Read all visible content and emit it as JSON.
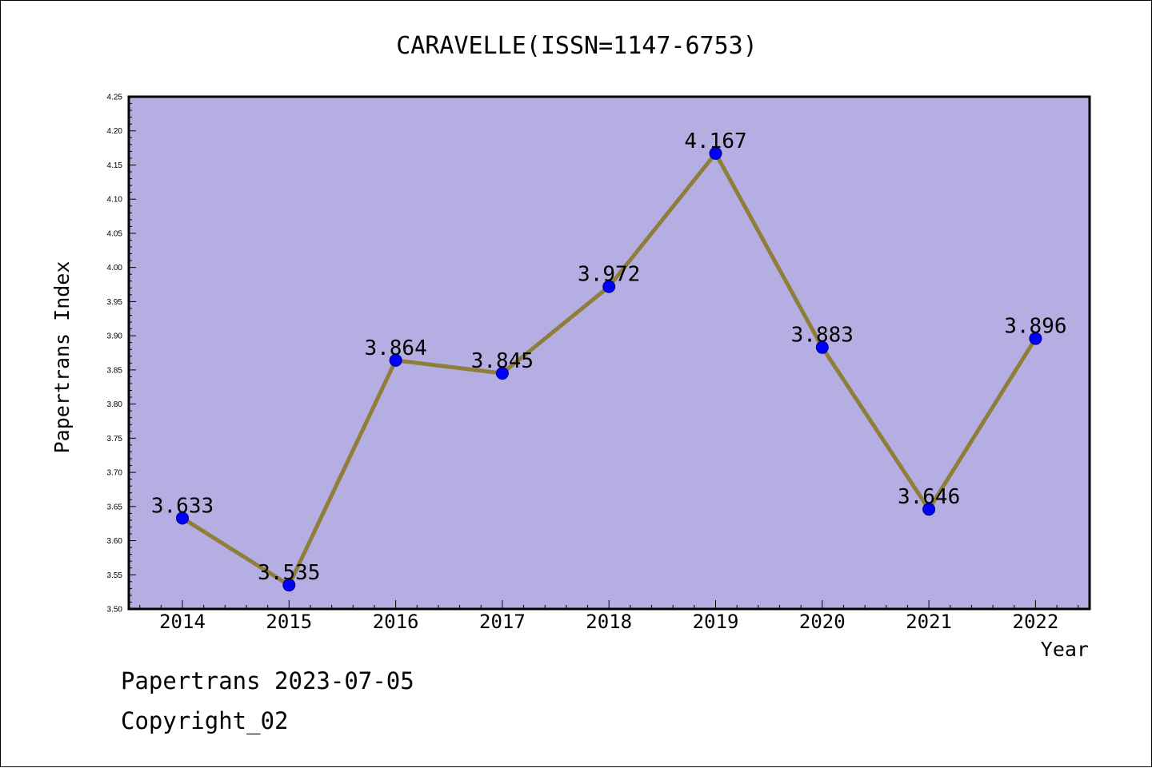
{
  "chart_data": {
    "type": "line",
    "title": "CARAVELLE(ISSN=1147-6753)",
    "xlabel": "Year",
    "ylabel": "Papertrans Index",
    "categories": [
      "2014",
      "2015",
      "2016",
      "2017",
      "2018",
      "2019",
      "2020",
      "2021",
      "2022"
    ],
    "values": [
      3.633,
      3.535,
      3.864,
      3.845,
      3.972,
      4.167,
      3.883,
      3.646,
      3.896
    ],
    "data_labels": [
      "3.633",
      "3.535",
      "3.864",
      "3.845",
      "3.972",
      "4.167",
      "3.883",
      "3.646",
      "3.896"
    ],
    "ylim": [
      3.5,
      4.25
    ],
    "yticks": [
      "3.50",
      "3.55",
      "3.60",
      "3.65",
      "3.70",
      "3.75",
      "3.80",
      "3.85",
      "3.90",
      "3.95",
      "4.00",
      "4.05",
      "4.10",
      "4.15",
      "4.20",
      "4.25"
    ],
    "grid": false,
    "legend": "none",
    "colors": {
      "plot_background": "#b5aee2",
      "line": "#8f7d3a",
      "marker": "#0000ff",
      "marker_edge": "#00007a",
      "axis": "#000000"
    }
  },
  "footer": {
    "date_text": "Papertrans 2023-07-05",
    "copyright_text": "Copyright_02"
  }
}
